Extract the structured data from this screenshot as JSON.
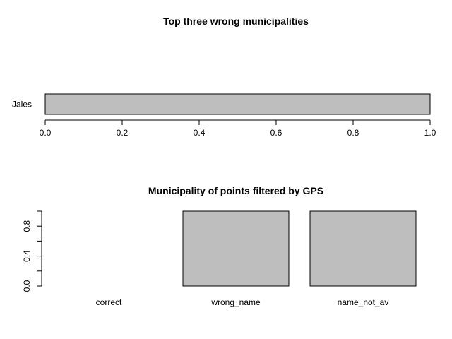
{
  "chart_data": [
    {
      "type": "bar",
      "orientation": "horizontal",
      "title": "Top three wrong municipalities",
      "categories": [
        "Jales"
      ],
      "values": [
        1.0
      ],
      "xlim": [
        0,
        1
      ],
      "x_ticks": [
        "0.0",
        "0.2",
        "0.4",
        "0.6",
        "0.8",
        "1.0"
      ],
      "xlabel": "",
      "ylabel": "",
      "grid": false,
      "bar_color": "#bebebe"
    },
    {
      "type": "bar",
      "orientation": "vertical",
      "title": "Municipality of points filtered by GPS",
      "categories": [
        "correct",
        "wrong_name",
        "name_not_av"
      ],
      "values": [
        0,
        1,
        1
      ],
      "ylim": [
        0,
        1
      ],
      "y_ticks": [
        "0.0",
        "0.4",
        "0.8"
      ],
      "xlabel": "",
      "ylabel": "",
      "grid": false,
      "bar_color": "#bebebe"
    }
  ]
}
